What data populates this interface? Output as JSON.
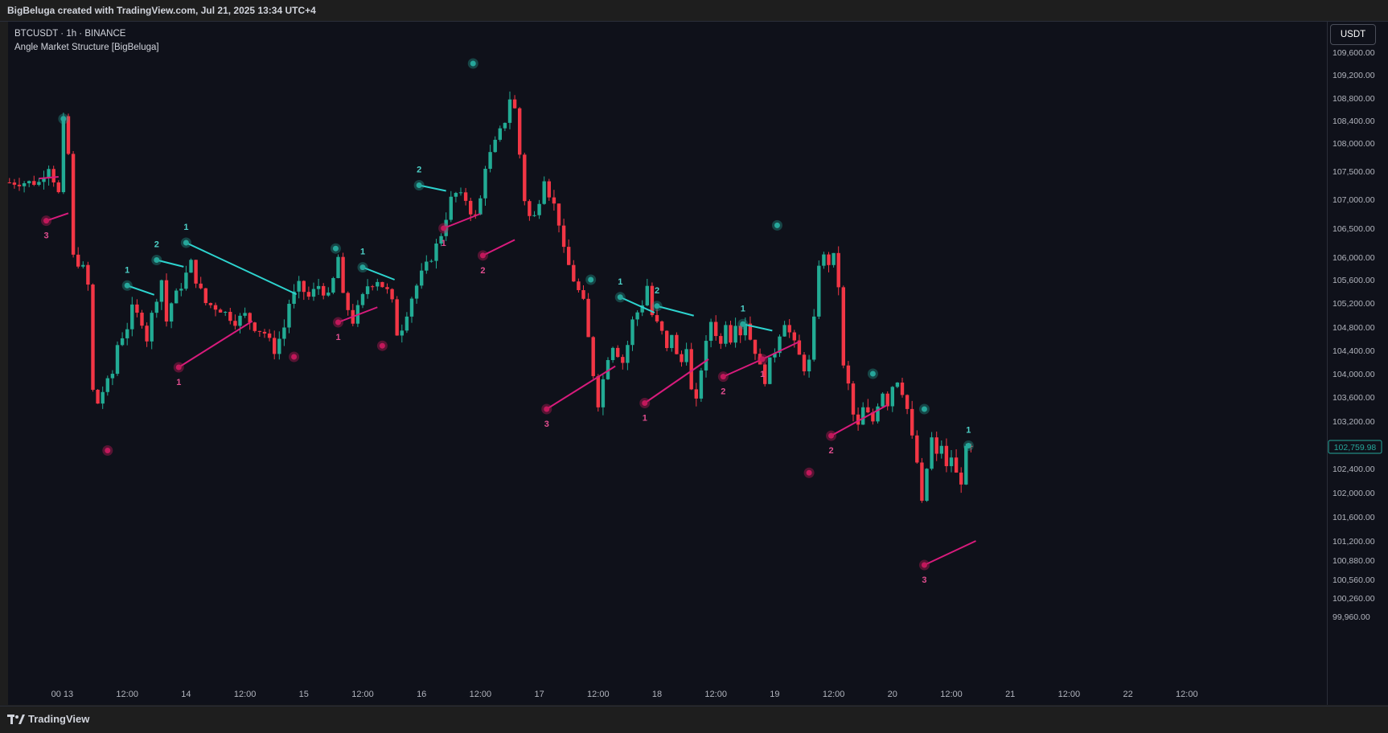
{
  "header": {
    "credit": "BigBeluga created with TradingView.com, Jul 21, 2025 13:34 UTC+4"
  },
  "legend": {
    "symbol_line": "BTCUSDT · 1h · BINANCE",
    "indicator": "Angle Market Structure [BigBeluga]"
  },
  "currency_button": "USDT",
  "footer": {
    "brand": "TradingView"
  },
  "colors": {
    "bull": "#22ab94",
    "bear": "#f23645",
    "high_line": "#2dd4cf",
    "low_line": "#d81b7c",
    "high_dot": "#26a69a",
    "low_dot": "#c2185b",
    "label_high": "#4dd0c7",
    "label_low": "#e04d8f",
    "price_tag": "#26a69a"
  },
  "chart_data": {
    "type": "candlestick",
    "symbol": "BTCUSDT",
    "timeframe": "1h",
    "exchange": "BINANCE",
    "y_ticks": [
      109600,
      109200,
      108800,
      108400,
      108000,
      107500,
      107000,
      106500,
      106000,
      105600,
      105200,
      104800,
      104400,
      104000,
      103600,
      103200,
      102800,
      102400,
      102000,
      101600,
      101200,
      100880,
      100560,
      100260,
      99960
    ],
    "y_tick_labels": [
      "109,600.00",
      "109,200.00",
      "108,800.00",
      "108,400.00",
      "108,000.00",
      "107,500.00",
      "107,000.00",
      "106,500.00",
      "106,000.00",
      "105,600.00",
      "105,200.00",
      "104,800.00",
      "104,400.00",
      "104,000.00",
      "103,600.00",
      "103,200.00",
      "102,800.00",
      "102,400.00",
      "102,000.00",
      "101,600.00",
      "101,200.00",
      "100,880.00",
      "100,560.00",
      "100,260.00",
      "99,960.00"
    ],
    "x_ticks": [
      {
        "t": -2.5,
        "label": "00"
      },
      {
        "t": 0,
        "label": "13"
      },
      {
        "t": 12,
        "label": "12:00"
      },
      {
        "t": 24,
        "label": "14"
      },
      {
        "t": 36,
        "label": "12:00"
      },
      {
        "t": 48,
        "label": "15"
      },
      {
        "t": 60,
        "label": "12:00"
      },
      {
        "t": 72,
        "label": "16"
      },
      {
        "t": 84,
        "label": "12:00"
      },
      {
        "t": 96,
        "label": "17"
      },
      {
        "t": 108,
        "label": "12:00"
      },
      {
        "t": 120,
        "label": "18"
      },
      {
        "t": 132,
        "label": "12:00"
      },
      {
        "t": 144,
        "label": "19"
      },
      {
        "t": 156,
        "label": "12:00"
      },
      {
        "t": 168,
        "label": "20"
      },
      {
        "t": 180,
        "label": "12:00"
      },
      {
        "t": 192,
        "label": "21"
      },
      {
        "t": 204,
        "label": "12:00"
      },
      {
        "t": 216,
        "label": "22"
      },
      {
        "t": 228,
        "label": "12:00"
      }
    ],
    "last_price": 102759.98,
    "last_price_label": "102,759.98",
    "anchors": [
      {
        "t": -6,
        "close": 107300
      },
      {
        "t": -4,
        "close": 107600
      },
      {
        "t": -2,
        "close": 107100
      },
      {
        "t": -1,
        "close": 108400
      },
      {
        "t": 0,
        "close": 107800
      },
      {
        "t": 0.5,
        "close": 106800
      },
      {
        "t": 1,
        "close": 106000
      },
      {
        "t": 2,
        "close": 105900
      },
      {
        "t": 3,
        "close": 105800
      },
      {
        "t": 4,
        "close": 105500
      },
      {
        "t": 5,
        "close": 103700
      },
      {
        "t": 6,
        "close": 103500
      },
      {
        "t": 7,
        "close": 103700
      },
      {
        "t": 9,
        "close": 104000
      },
      {
        "t": 10,
        "close": 104500
      },
      {
        "t": 12,
        "close": 104800
      },
      {
        "t": 13,
        "close": 105100
      },
      {
        "t": 15,
        "close": 104900
      },
      {
        "t": 16,
        "close": 104600
      },
      {
        "t": 17,
        "close": 105000
      },
      {
        "t": 19,
        "close": 105600
      },
      {
        "t": 20,
        "close": 104900
      },
      {
        "t": 21,
        "close": 105200
      },
      {
        "t": 23,
        "close": 105500
      },
      {
        "t": 25,
        "close": 105900
      },
      {
        "t": 26,
        "close": 105600
      },
      {
        "t": 28,
        "close": 105200
      },
      {
        "t": 31,
        "close": 105100
      },
      {
        "t": 34,
        "close": 104900
      },
      {
        "t": 36,
        "close": 105000
      },
      {
        "t": 38,
        "close": 104800
      },
      {
        "t": 40,
        "close": 104700
      },
      {
        "t": 42,
        "close": 104400
      },
      {
        "t": 44,
        "close": 104800
      },
      {
        "t": 45,
        "close": 105200
      },
      {
        "t": 47,
        "close": 105500
      },
      {
        "t": 49,
        "close": 105300
      },
      {
        "t": 51,
        "close": 105500
      },
      {
        "t": 53,
        "close": 105300
      },
      {
        "t": 54,
        "close": 105600
      },
      {
        "t": 55,
        "close": 106000
      },
      {
        "t": 56,
        "close": 105300
      },
      {
        "t": 57,
        "close": 105100
      },
      {
        "t": 58,
        "close": 104900
      },
      {
        "t": 59,
        "close": 105100
      },
      {
        "t": 61,
        "close": 105500
      },
      {
        "t": 63,
        "close": 105600
      },
      {
        "t": 65,
        "close": 105400
      },
      {
        "t": 66,
        "close": 105200
      },
      {
        "t": 67,
        "close": 104700
      },
      {
        "t": 68,
        "close": 104800
      },
      {
        "t": 70,
        "close": 105300
      },
      {
        "t": 72,
        "close": 105700
      },
      {
        "t": 74,
        "close": 106000
      },
      {
        "t": 76,
        "close": 106400
      },
      {
        "t": 77,
        "close": 106700
      },
      {
        "t": 78,
        "close": 107000
      },
      {
        "t": 79,
        "close": 107100
      },
      {
        "t": 81,
        "close": 107000
      },
      {
        "t": 82,
        "close": 106800
      },
      {
        "t": 83,
        "close": 106700
      },
      {
        "t": 84,
        "close": 107000
      },
      {
        "t": 85,
        "close": 107600
      },
      {
        "t": 87,
        "close": 108000
      },
      {
        "t": 89,
        "close": 108400
      },
      {
        "t": 90,
        "close": 108800
      },
      {
        "t": 91,
        "close": 108600
      },
      {
        "t": 92,
        "close": 107800
      },
      {
        "t": 93,
        "close": 107000
      },
      {
        "t": 94,
        "close": 106700
      },
      {
        "t": 95,
        "close": 106700
      },
      {
        "t": 96,
        "close": 107000
      },
      {
        "t": 97,
        "close": 107400
      },
      {
        "t": 98,
        "close": 107100
      },
      {
        "t": 99,
        "close": 106900
      },
      {
        "t": 100,
        "close": 106600
      },
      {
        "t": 101,
        "close": 106100
      },
      {
        "t": 103,
        "close": 105600
      },
      {
        "t": 105,
        "close": 105200
      },
      {
        "t": 106,
        "close": 104600
      },
      {
        "t": 107,
        "close": 104000
      },
      {
        "t": 108,
        "close": 103500
      },
      {
        "t": 109,
        "close": 103900
      },
      {
        "t": 110,
        "close": 104300
      },
      {
        "t": 111,
        "close": 104500
      },
      {
        "t": 113,
        "close": 104200
      },
      {
        "t": 114,
        "close": 104500
      },
      {
        "t": 115,
        "close": 104900
      },
      {
        "t": 117,
        "close": 105200
      },
      {
        "t": 118,
        "close": 105500
      },
      {
        "t": 119,
        "close": 105000
      },
      {
        "t": 121,
        "close": 104700
      },
      {
        "t": 122,
        "close": 104400
      },
      {
        "t": 123,
        "close": 104700
      },
      {
        "t": 124,
        "close": 104300
      },
      {
        "t": 125,
        "close": 104200
      },
      {
        "t": 126,
        "close": 104500
      },
      {
        "t": 127,
        "close": 103700
      },
      {
        "t": 128,
        "close": 103500
      },
      {
        "t": 129,
        "close": 104100
      },
      {
        "t": 130,
        "close": 104500
      },
      {
        "t": 131,
        "close": 104900
      },
      {
        "t": 132,
        "close": 104700
      },
      {
        "t": 133,
        "close": 104500
      },
      {
        "t": 134,
        "close": 104900
      },
      {
        "t": 135,
        "close": 104600
      },
      {
        "t": 136,
        "close": 104900
      },
      {
        "t": 137,
        "close": 104700
      },
      {
        "t": 138,
        "close": 104900
      },
      {
        "t": 139,
        "close": 104600
      },
      {
        "t": 140,
        "close": 104400
      },
      {
        "t": 141,
        "close": 104100
      },
      {
        "t": 142,
        "close": 103900
      },
      {
        "t": 143,
        "close": 104200
      },
      {
        "t": 144,
        "close": 104400
      },
      {
        "t": 145,
        "close": 104700
      },
      {
        "t": 146,
        "close": 104900
      },
      {
        "t": 147,
        "close": 104700
      },
      {
        "t": 148,
        "close": 104500
      },
      {
        "t": 149,
        "close": 104300
      },
      {
        "t": 150,
        "close": 104100
      },
      {
        "t": 151,
        "close": 104200
      },
      {
        "t": 152,
        "close": 104900
      },
      {
        "t": 153,
        "close": 105900
      },
      {
        "t": 154,
        "close": 106000
      },
      {
        "t": 155,
        "close": 105900
      },
      {
        "t": 156,
        "close": 106000
      },
      {
        "t": 157,
        "close": 105500
      },
      {
        "t": 158,
        "close": 104100
      },
      {
        "t": 159,
        "close": 103800
      },
      {
        "t": 160,
        "close": 103300
      },
      {
        "t": 161,
        "close": 103100
      },
      {
        "t": 162,
        "close": 103400
      },
      {
        "t": 163,
        "close": 103300
      },
      {
        "t": 164,
        "close": 103200
      },
      {
        "t": 165,
        "close": 103500
      },
      {
        "t": 166,
        "close": 103700
      },
      {
        "t": 167,
        "close": 103500
      },
      {
        "t": 168,
        "close": 103800
      },
      {
        "t": 169,
        "close": 103900
      },
      {
        "t": 170,
        "close": 103700
      },
      {
        "t": 171,
        "close": 103400
      },
      {
        "t": 172,
        "close": 102900
      },
      {
        "t": 173,
        "close": 102500
      },
      {
        "t": 174,
        "close": 101800
      },
      {
        "t": 175,
        "close": 102400
      },
      {
        "t": 176,
        "close": 102900
      },
      {
        "t": 177,
        "close": 102600
      },
      {
        "t": 178,
        "close": 102800
      },
      {
        "t": 179,
        "close": 102400
      },
      {
        "t": 180,
        "close": 102600
      },
      {
        "t": 181,
        "close": 102300
      },
      {
        "t": 182,
        "close": 102200
      },
      {
        "t": 183,
        "close": 102700
      },
      {
        "t": 184,
        "close": 102760
      }
    ],
    "swing_highs": [
      {
        "t": -1,
        "price": 108430,
        "label": ""
      },
      {
        "t": 12,
        "price": 105500,
        "label": "1"
      },
      {
        "t": 18,
        "price": 105950,
        "label": "2"
      },
      {
        "t": 24,
        "price": 106250,
        "label": "1"
      },
      {
        "t": 54.5,
        "price": 106150,
        "label": ""
      },
      {
        "t": 60,
        "price": 105820,
        "label": "1"
      },
      {
        "t": 71.5,
        "price": 107250,
        "label": "2"
      },
      {
        "t": 82.5,
        "price": 109400,
        "label": ""
      },
      {
        "t": 106.5,
        "price": 105600,
        "label": ""
      },
      {
        "t": 112.5,
        "price": 105300,
        "label": "1"
      },
      {
        "t": 120,
        "price": 105150,
        "label": "2"
      },
      {
        "t": 137.5,
        "price": 104850,
        "label": "1"
      },
      {
        "t": 144.5,
        "price": 106550,
        "label": ""
      },
      {
        "t": 164,
        "price": 104000,
        "label": ""
      },
      {
        "t": 174.5,
        "price": 103400,
        "label": ""
      },
      {
        "t": 183.5,
        "price": 102780,
        "label": "1"
      }
    ],
    "swing_lows": [
      {
        "t": -4.5,
        "price": 106630,
        "label": "3"
      },
      {
        "t": 8,
        "price": 102700,
        "label": ""
      },
      {
        "t": 22.5,
        "price": 104110,
        "label": "1"
      },
      {
        "t": 46,
        "price": 104290,
        "label": ""
      },
      {
        "t": 55,
        "price": 104880,
        "label": "1"
      },
      {
        "t": 64,
        "price": 104480,
        "label": ""
      },
      {
        "t": 76.5,
        "price": 106500,
        "label": "1"
      },
      {
        "t": 84.5,
        "price": 106030,
        "label": "2"
      },
      {
        "t": 97.5,
        "price": 103400,
        "label": "3"
      },
      {
        "t": 117.5,
        "price": 103500,
        "label": "1"
      },
      {
        "t": 133.5,
        "price": 103950,
        "label": "2"
      },
      {
        "t": 141.5,
        "price": 104250,
        "label": "1"
      },
      {
        "t": 151,
        "price": 102330,
        "label": ""
      },
      {
        "t": 155.5,
        "price": 102950,
        "label": "2"
      },
      {
        "t": 174.5,
        "price": 100800,
        "label": "3"
      }
    ],
    "high_lines": [
      {
        "t1": 12,
        "p1": 105500,
        "t2": 17.5,
        "p2": 105340
      },
      {
        "t1": 18,
        "p1": 105950,
        "t2": 23.5,
        "p2": 105830
      },
      {
        "t1": 24,
        "p1": 106250,
        "t2": 46.5,
        "p2": 105350
      },
      {
        "t1": 60,
        "p1": 105820,
        "t2": 66.5,
        "p2": 105600
      },
      {
        "t1": 71.5,
        "p1": 107250,
        "t2": 77,
        "p2": 107150
      },
      {
        "t1": 112.5,
        "p1": 105300,
        "t2": 119.5,
        "p2": 105040
      },
      {
        "t1": 120,
        "p1": 105150,
        "t2": 127.5,
        "p2": 104990
      },
      {
        "t1": 137.5,
        "p1": 104850,
        "t2": 143.5,
        "p2": 104740
      }
    ],
    "low_lines": [
      {
        "t1": -6,
        "p1": 107370,
        "t2": -2,
        "p2": 107400
      },
      {
        "t1": -4.5,
        "p1": 106630,
        "t2": 0,
        "p2": 106760
      },
      {
        "t1": 22.5,
        "p1": 104110,
        "t2": 37.5,
        "p2": 104900
      },
      {
        "t1": 55,
        "p1": 104880,
        "t2": 63,
        "p2": 105130
      },
      {
        "t1": 76.5,
        "p1": 106500,
        "t2": 84,
        "p2": 106750
      },
      {
        "t1": 84.5,
        "p1": 106030,
        "t2": 91,
        "p2": 106300
      },
      {
        "t1": 97.5,
        "p1": 103400,
        "t2": 111.5,
        "p2": 104130
      },
      {
        "t1": 117.5,
        "p1": 103500,
        "t2": 130.5,
        "p2": 104250
      },
      {
        "t1": 133.5,
        "p1": 103950,
        "t2": 141.5,
        "p2": 104250
      },
      {
        "t1": 141.5,
        "p1": 104250,
        "t2": 149,
        "p2": 104550
      },
      {
        "t1": 155.5,
        "p1": 102950,
        "t2": 167,
        "p2": 103470
      },
      {
        "t1": 174.5,
        "p1": 100800,
        "t2": 185,
        "p2": 101200
      }
    ]
  }
}
